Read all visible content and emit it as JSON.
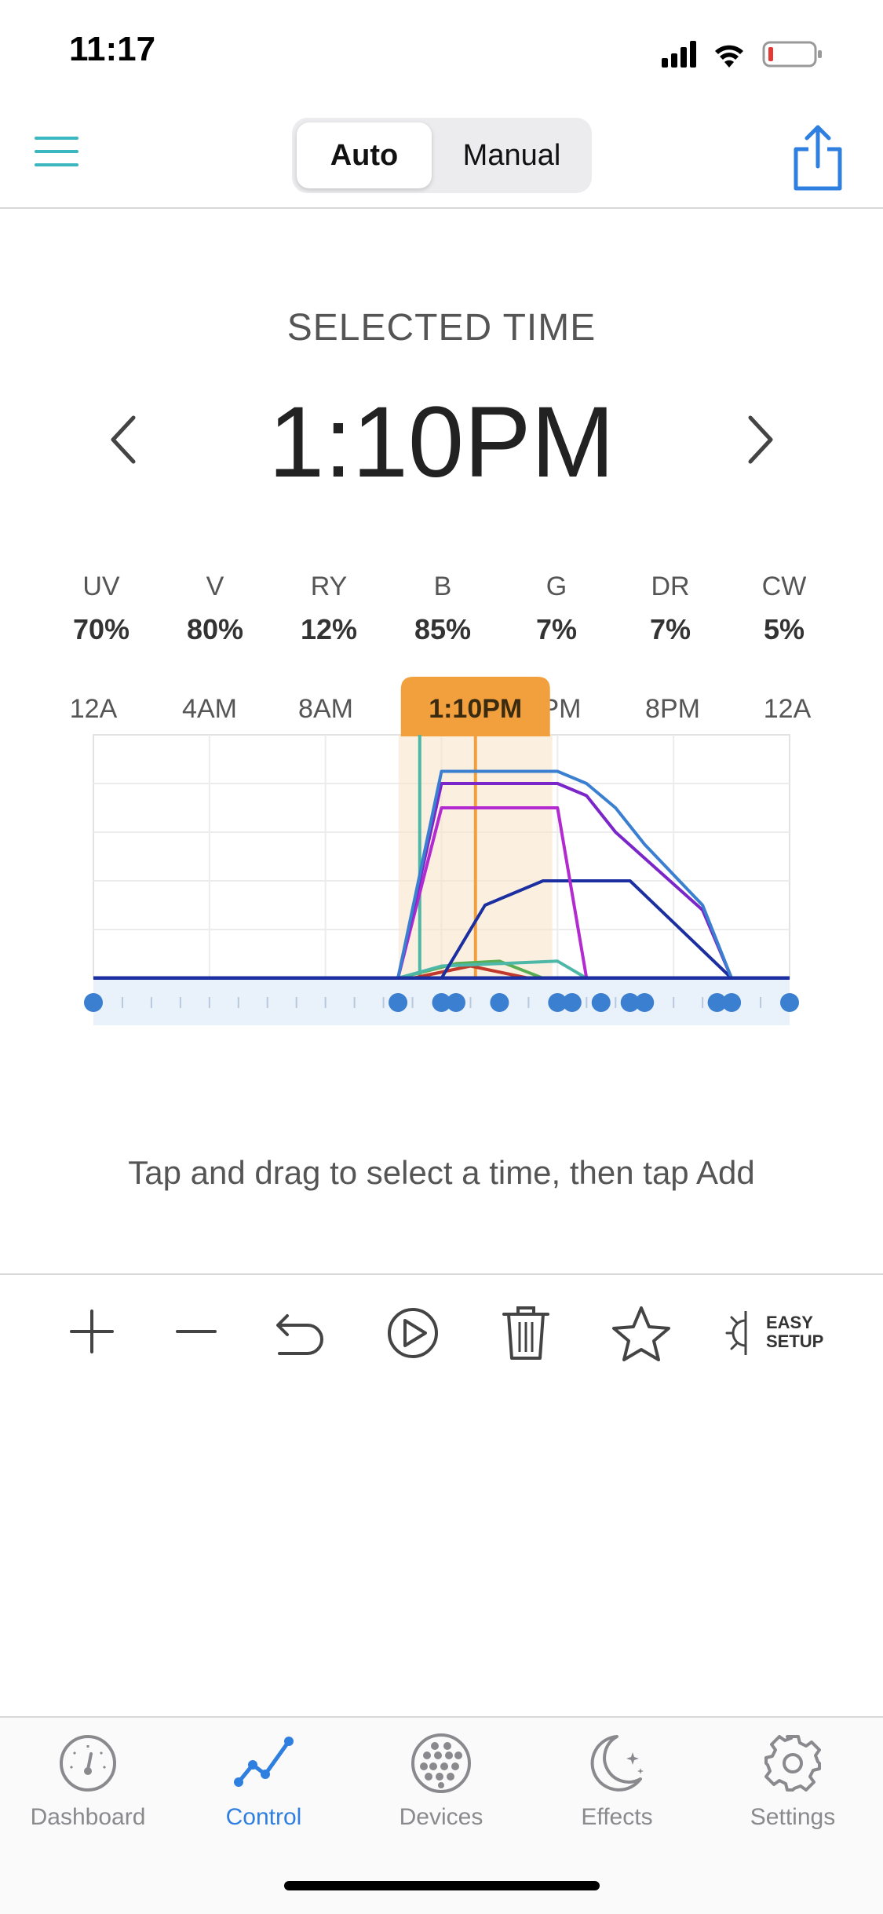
{
  "status_bar": {
    "time": "11:17"
  },
  "header": {
    "segments": [
      "Auto",
      "Manual"
    ],
    "active_segment": "Auto"
  },
  "selected_time": {
    "label": "SELECTED TIME",
    "value": "1:10PM"
  },
  "channels": [
    {
      "name": "UV",
      "value": "70%"
    },
    {
      "name": "V",
      "value": "80%"
    },
    {
      "name": "RY",
      "value": "12%"
    },
    {
      "name": "B",
      "value": "85%"
    },
    {
      "name": "G",
      "value": "7%"
    },
    {
      "name": "DR",
      "value": "7%"
    },
    {
      "name": "CW",
      "value": "5%"
    }
  ],
  "chart_data": {
    "type": "line",
    "x_tick_labels": [
      "12A",
      "4AM",
      "8AM",
      "PM",
      "8PM",
      "12A"
    ],
    "highlight_label": "1:10PM",
    "xlim": [
      0,
      24
    ],
    "ylim": [
      0,
      100
    ],
    "grid": true,
    "selected_hour": 13.17,
    "series": [
      {
        "color": "#3a7fd0",
        "x": [
          0,
          10.5,
          12,
          16,
          17,
          18,
          19,
          21,
          22,
          24
        ],
        "y": [
          0,
          0,
          85,
          85,
          80,
          70,
          55,
          30,
          0,
          0
        ]
      },
      {
        "color": "#7a26c9",
        "x": [
          0,
          10.5,
          12,
          16,
          17,
          18,
          21,
          22,
          24
        ],
        "y": [
          0,
          0,
          80,
          80,
          75,
          60,
          28,
          0,
          0
        ]
      },
      {
        "color": "#b22ad0",
        "x": [
          0,
          10.5,
          12,
          16,
          17,
          24
        ],
        "y": [
          0,
          0,
          70,
          70,
          0,
          0
        ]
      },
      {
        "color": "#1c2fa0",
        "x": [
          0,
          12,
          13.5,
          15.5,
          18.5,
          22,
          24
        ],
        "y": [
          0,
          0,
          30,
          40,
          40,
          0,
          0
        ]
      },
      {
        "color": "#4db8a8",
        "x": [
          0,
          10.5,
          12,
          16,
          17,
          24
        ],
        "y": [
          0,
          0,
          5,
          7,
          0,
          0
        ]
      },
      {
        "color": "#5aae52",
        "x": [
          0,
          10.5,
          12.5,
          14,
          15.5,
          24
        ],
        "y": [
          0,
          0,
          6,
          7,
          0,
          0
        ]
      },
      {
        "color": "#c0392b",
        "x": [
          0,
          11,
          13,
          15,
          24
        ],
        "y": [
          0,
          0,
          5,
          0,
          0
        ]
      }
    ],
    "markers_hours": [
      0,
      10.5,
      12,
      12.5,
      14,
      16,
      16.5,
      17.5,
      18.5,
      19,
      21.5,
      22,
      24
    ]
  },
  "hint": "Tap and drag to select a time, then tap Add",
  "toolbar": {
    "easy_setup_line1": "EASY",
    "easy_setup_line2": "SETUP"
  },
  "tabs": [
    {
      "label": "Dashboard",
      "icon": "dashboard-gauge-icon"
    },
    {
      "label": "Control",
      "icon": "control-graph-icon",
      "active": true
    },
    {
      "label": "Devices",
      "icon": "devices-led-icon"
    },
    {
      "label": "Effects",
      "icon": "effects-moon-icon"
    },
    {
      "label": "Settings",
      "icon": "settings-gear-icon"
    }
  ],
  "colors": {
    "accent": "#2f7fe0",
    "highlight": "#f2a03d",
    "menu": "#3bb7bf"
  }
}
